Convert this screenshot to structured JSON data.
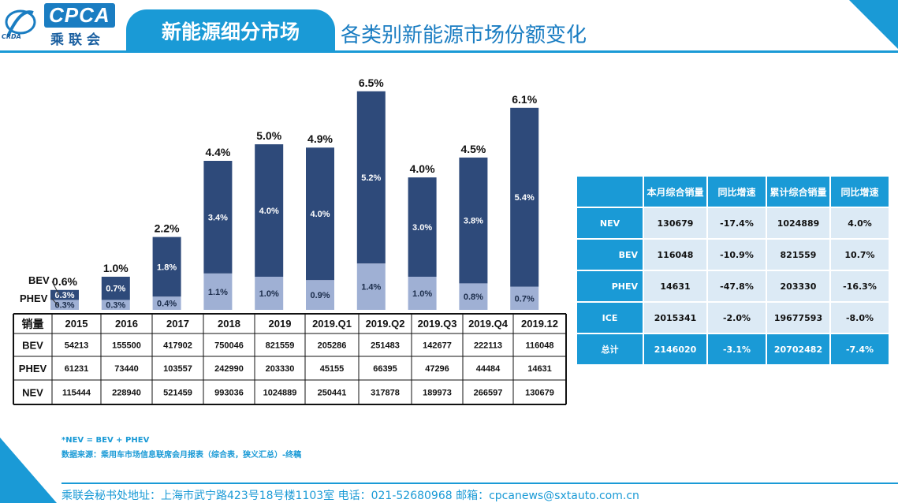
{
  "brand": {
    "logo_text": "CPCA",
    "logo_cn": "乘联会",
    "logo_sub": "CRDA"
  },
  "header": {
    "section": "新能源细分市场",
    "title": "各类别新能源市场份额变化"
  },
  "colors": {
    "bev": "#2e4a7a",
    "phev": "#9fb0d4",
    "accent": "#1a9ad6"
  },
  "chart_data": {
    "type": "bar",
    "stacked": true,
    "categories": [
      "2015",
      "2016",
      "2017",
      "2018",
      "2019",
      "2019.Q1",
      "2019.Q2",
      "2019.Q3",
      "2019.Q4",
      "2019.12"
    ],
    "series": [
      {
        "name": "BEV",
        "values_label": [
          "0.3%",
          "0.7%",
          "1.8%",
          "3.4%",
          "4.0%",
          "4.0%",
          "5.2%",
          "3.0%",
          "3.8%",
          "5.4%"
        ],
        "values": [
          0.3,
          0.7,
          1.8,
          3.4,
          4.0,
          4.0,
          5.2,
          3.0,
          3.8,
          5.4
        ]
      },
      {
        "name": "PHEV",
        "values_label": [
          "0.3%",
          "0.3%",
          "0.4%",
          "1.1%",
          "1.0%",
          "0.9%",
          "1.4%",
          "1.0%",
          "0.8%",
          "0.7%"
        ],
        "values": [
          0.3,
          0.3,
          0.4,
          1.1,
          1.0,
          0.9,
          1.4,
          1.0,
          0.8,
          0.7
        ]
      }
    ],
    "totals_label": [
      "0.6%",
      "1.0%",
      "2.2%",
      "4.4%",
      "5.0%",
      "4.9%",
      "6.5%",
      "4.0%",
      "4.5%",
      "6.1%"
    ],
    "totals": [
      0.6,
      1.0,
      2.2,
      4.4,
      5.0,
      4.9,
      6.5,
      4.0,
      4.5,
      6.1
    ],
    "ylim": [
      0,
      6.5
    ],
    "legend_labels": {
      "bev": "BEV",
      "phev": "PHEV"
    }
  },
  "sales_table": {
    "header_label": "销量",
    "rows": [
      {
        "label": "BEV",
        "values": [
          "54213",
          "155500",
          "417902",
          "750046",
          "821559",
          "205286",
          "251483",
          "142677",
          "222113",
          "116048"
        ]
      },
      {
        "label": "PHEV",
        "values": [
          "61231",
          "73440",
          "103557",
          "242990",
          "203330",
          "45155",
          "66395",
          "47296",
          "44484",
          "14631"
        ]
      },
      {
        "label": "NEV",
        "values": [
          "115444",
          "228940",
          "521459",
          "993036",
          "1024889",
          "250441",
          "317878",
          "189973",
          "266597",
          "130679"
        ]
      }
    ]
  },
  "summary_table": {
    "headers": [
      "本月综合销量",
      "同比增速",
      "累计综合销量",
      "同比增速"
    ],
    "rows": [
      {
        "label": "NEV",
        "values": [
          "130679",
          "-17.4%",
          "1024889",
          "4.0%"
        ]
      },
      {
        "label": "BEV",
        "values": [
          "116048",
          "-10.9%",
          "821559",
          "10.7%"
        ]
      },
      {
        "label": "PHEV",
        "values": [
          "14631",
          "-47.8%",
          "203330",
          "-16.3%"
        ]
      },
      {
        "label": "ICE",
        "values": [
          "2015341",
          "-2.0%",
          "19677593",
          "-8.0%"
        ]
      },
      {
        "label": "总计",
        "values": [
          "2146020",
          "-3.1%",
          "20702482",
          "-7.4%"
        ]
      }
    ]
  },
  "notes": [
    "*NEV = BEV + PHEV",
    "数据来源：乘用车市场信息联席会月报表（综合表，狭义汇总）-终稿"
  ],
  "footer": "乘联会秘书处地址：上海市武宁路423号18号楼1103室  电话：021-52680968   邮箱：cpcanews@sxtauto.com.cn"
}
